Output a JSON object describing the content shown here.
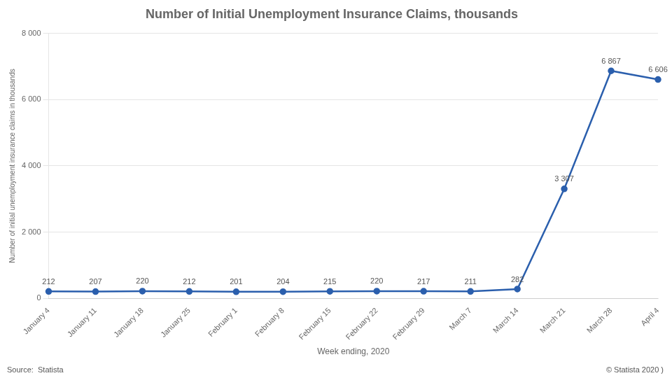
{
  "chart_data": {
    "type": "line",
    "title": "Number of Initial Unemployment Insurance Claims, thousands",
    "xlabel": "Week ending, 2020",
    "ylabel": "Number of initial unemployment insurance claims in thousands",
    "categories": [
      "January 4",
      "January 11",
      "January 18",
      "January 25",
      "February 1",
      "February 8",
      "February 15",
      "February 22",
      "February 29",
      "March 7",
      "March 14",
      "March 21",
      "March 28",
      "April 4"
    ],
    "values": [
      212,
      207,
      220,
      212,
      201,
      204,
      215,
      220,
      217,
      211,
      282,
      3307,
      6867,
      6606
    ],
    "value_labels": [
      "212",
      "207",
      "220",
      "212",
      "201",
      "204",
      "215",
      "220",
      "217",
      "211",
      "282",
      "3 307",
      "6 867",
      "6 606"
    ],
    "color": "#2b5fad",
    "marker": "circle",
    "ylim": [
      0,
      8000
    ],
    "yticks": [
      0,
      {
        "value": 2000,
        "label": "2 000"
      },
      {
        "value": 4000,
        "label": "4 000"
      },
      {
        "value": 6000,
        "label": "6 000"
      },
      {
        "value": 8000,
        "label": "8 000"
      }
    ],
    "grid": true,
    "data_labels": true,
    "annotations": [
      "Source:  Statista",
      "© Statista 2020 )"
    ]
  }
}
